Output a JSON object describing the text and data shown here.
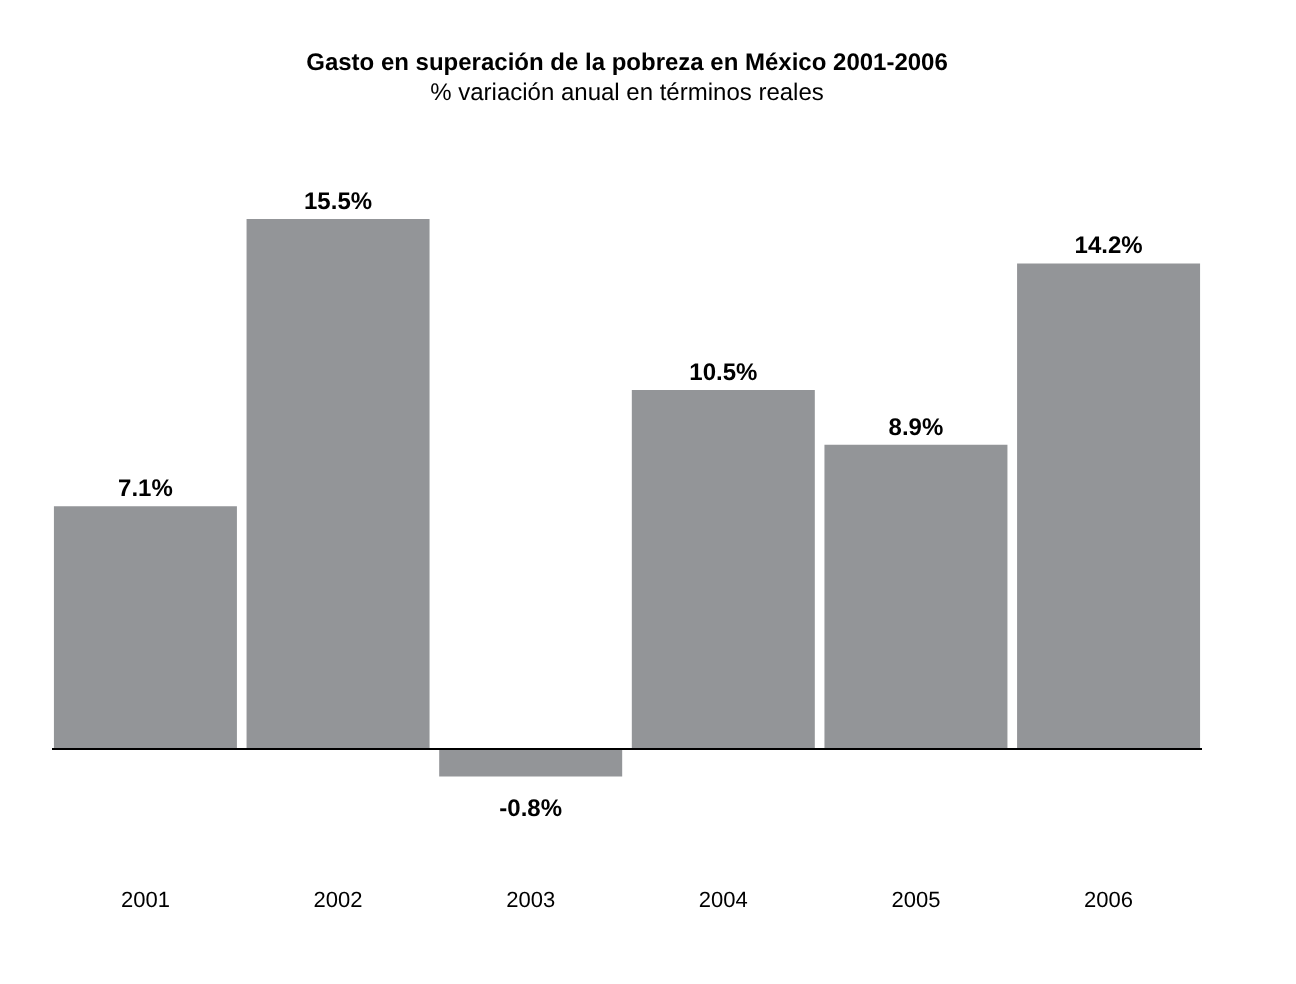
{
  "chart_data": {
    "type": "bar",
    "title": "Gasto en superación de la pobreza en México 2001-2006",
    "subtitle": "% variación anual en términos reales",
    "categories": [
      "2001",
      "2002",
      "2003",
      "2004",
      "2005",
      "2006"
    ],
    "values": [
      7.1,
      15.5,
      -0.8,
      10.5,
      8.9,
      14.2
    ],
    "value_labels": [
      "7.1%",
      "15.5%",
      "-0.8%",
      "10.5%",
      "8.9%",
      "14.2%"
    ],
    "color": "#939598",
    "grid": false
  }
}
